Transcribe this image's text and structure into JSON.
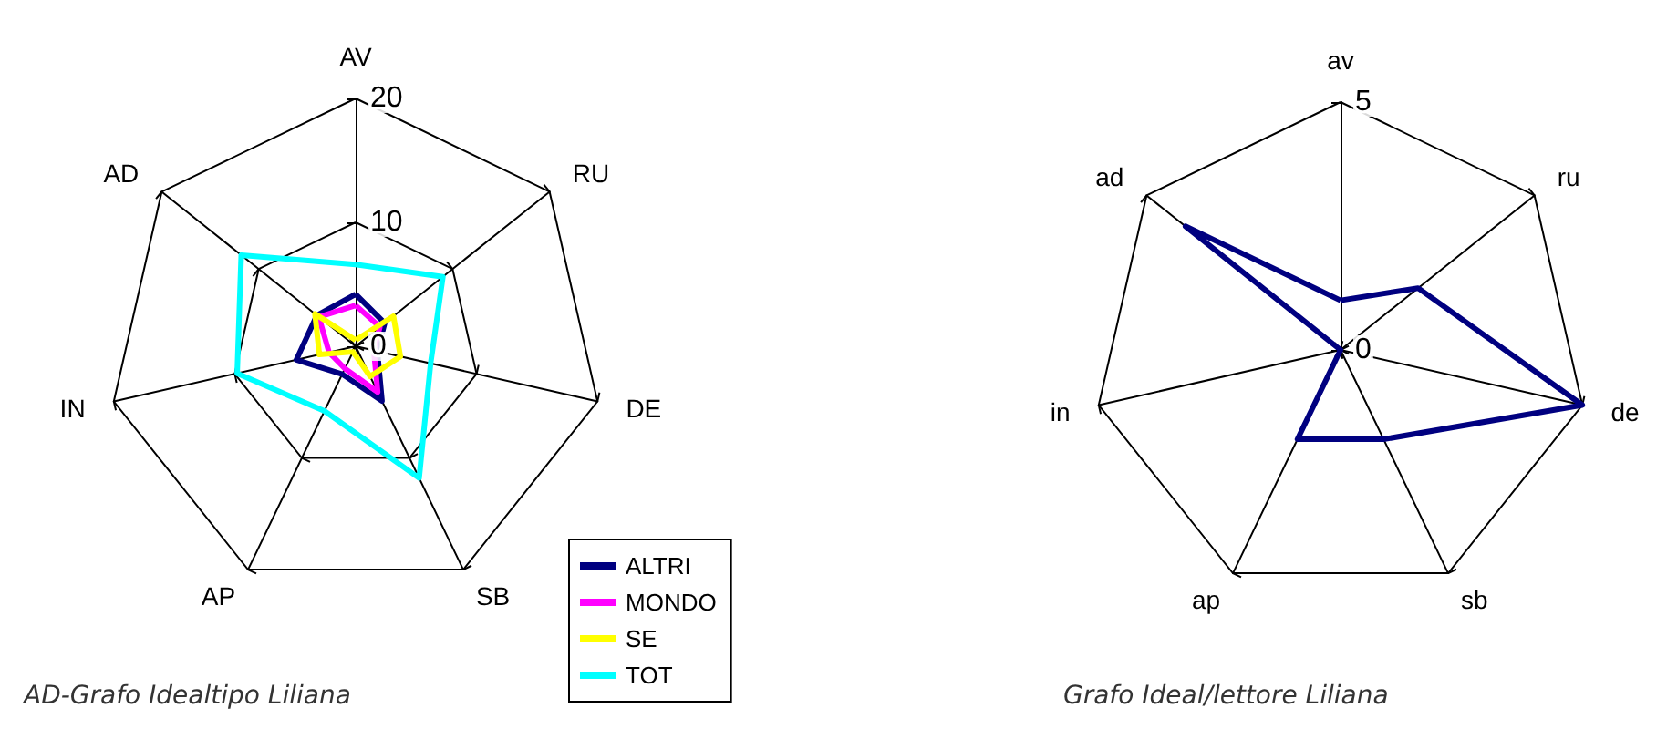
{
  "chart_data": [
    {
      "type": "radar",
      "title": "AD-Grafo Idealtipo Liliana",
      "categories": [
        "AV",
        "RU",
        "DE",
        "SB",
        "AP",
        "IN",
        "AD"
      ],
      "ylim": [
        0,
        20
      ],
      "yticks": [
        0,
        10,
        20
      ],
      "legend": "bottom right",
      "marker": "none",
      "line_style": "solid",
      "series": [
        {
          "name": "ALTRI",
          "color": "#000080",
          "values": [
            4.2,
            3,
            1.8,
            4.9,
            2.5,
            4.9,
            4
          ]
        },
        {
          "name": "MONDO",
          "color": "#ff00ff",
          "values": [
            3.3,
            2.5,
            1.5,
            4.1,
            2,
            2.2,
            3.8
          ]
        },
        {
          "name": "SE",
          "color": "#ffff00",
          "values": [
            0.5,
            3.9,
            3.7,
            2.7,
            0.5,
            3,
            4.2
          ]
        },
        {
          "name": "TOT",
          "color": "#00ffff",
          "values": [
            6.6,
            9,
            6.2,
            11.8,
            5.8,
            9.8,
            11.8
          ]
        }
      ]
    },
    {
      "type": "radar",
      "title": "Grafo Ideal/lettore Liliana",
      "categories": [
        "av",
        "ru",
        "de",
        "sb",
        "ap",
        "in",
        "ad"
      ],
      "ylim": [
        0,
        5
      ],
      "yticks": [
        0,
        5
      ],
      "legend": false,
      "marker": "none",
      "line_style": "solid",
      "series": [
        {
          "color": "#000080",
          "values": [
            1,
            2,
            5,
            2,
            2,
            0,
            4
          ]
        }
      ]
    }
  ]
}
